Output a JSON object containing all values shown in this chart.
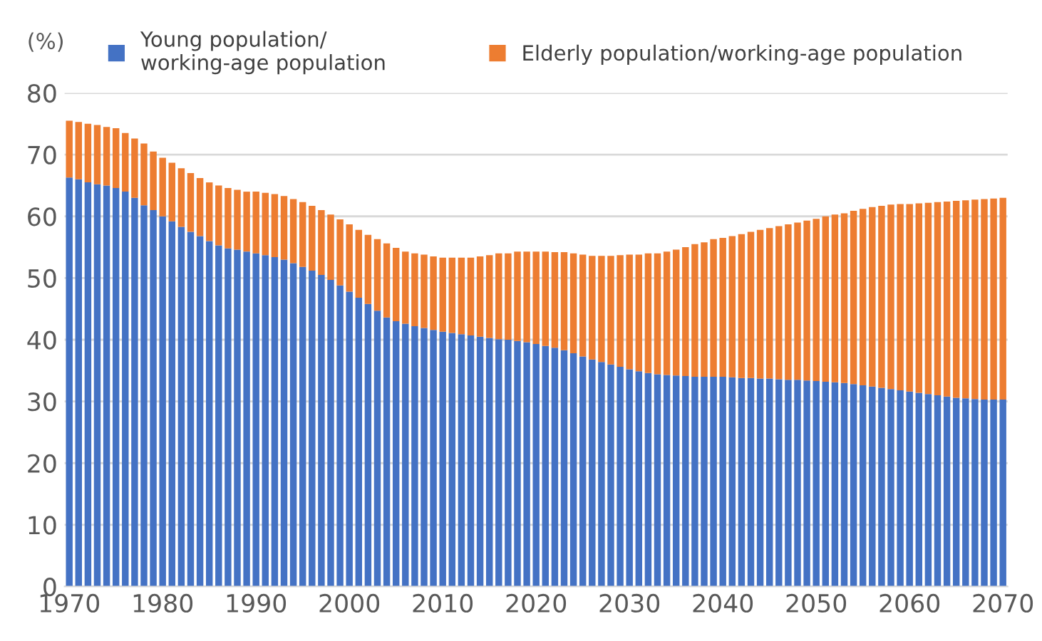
{
  "chart_data": {
    "type": "bar",
    "stacked": true,
    "ylabel": "(%)",
    "x": [
      1970,
      1971,
      1972,
      1973,
      1974,
      1975,
      1976,
      1977,
      1978,
      1979,
      1980,
      1981,
      1982,
      1983,
      1984,
      1985,
      1986,
      1987,
      1988,
      1989,
      1990,
      1991,
      1992,
      1993,
      1994,
      1995,
      1996,
      1997,
      1998,
      1999,
      2000,
      2001,
      2002,
      2003,
      2004,
      2005,
      2006,
      2007,
      2008,
      2009,
      2010,
      2011,
      2012,
      2013,
      2014,
      2015,
      2016,
      2017,
      2018,
      2019,
      2020,
      2021,
      2022,
      2023,
      2024,
      2025,
      2026,
      2027,
      2028,
      2029,
      2030,
      2031,
      2032,
      2033,
      2034,
      2035,
      2036,
      2037,
      2038,
      2039,
      2040,
      2041,
      2042,
      2043,
      2044,
      2045,
      2046,
      2047,
      2048,
      2049,
      2050,
      2051,
      2052,
      2053,
      2054,
      2055,
      2056,
      2057,
      2058,
      2059,
      2060,
      2061,
      2062,
      2063,
      2064,
      2065,
      2066,
      2067,
      2068,
      2069,
      2070
    ],
    "series": [
      {
        "name": "Young population/\nworking-age population",
        "color": "#4472c4",
        "values": [
          66.3,
          66.0,
          65.5,
          65.2,
          65.0,
          64.6,
          64.0,
          63.0,
          61.8,
          61.0,
          60.0,
          59.2,
          58.3,
          57.5,
          56.8,
          56.0,
          55.3,
          54.8,
          54.6,
          54.3,
          54.0,
          53.7,
          53.4,
          53.0,
          52.4,
          51.8,
          51.2,
          50.5,
          49.7,
          48.8,
          47.8,
          46.8,
          45.8,
          44.7,
          43.6,
          43.0,
          42.6,
          42.2,
          41.9,
          41.6,
          41.3,
          41.1,
          40.9,
          40.7,
          40.5,
          40.3,
          40.1,
          40.0,
          39.8,
          39.6,
          39.3,
          39.0,
          38.7,
          38.3,
          37.8,
          37.3,
          36.8,
          36.4,
          36.0,
          35.6,
          35.2,
          34.9,
          34.6,
          34.4,
          34.3,
          34.2,
          34.1,
          34.0,
          34.0,
          34.0,
          34.0,
          33.9,
          33.8,
          33.8,
          33.7,
          33.7,
          33.6,
          33.5,
          33.5,
          33.4,
          33.3,
          33.2,
          33.1,
          33.0,
          32.8,
          32.6,
          32.4,
          32.2,
          32.0,
          31.8,
          31.6,
          31.4,
          31.2,
          31.0,
          30.8,
          30.6,
          30.5,
          30.4,
          30.3,
          30.3,
          30.3
        ]
      },
      {
        "name": "Elderly population/working-age population",
        "color": "#ed7d31",
        "values": [
          9.2,
          9.3,
          9.5,
          9.6,
          9.5,
          9.7,
          9.5,
          9.6,
          10.0,
          9.5,
          9.5,
          9.5,
          9.5,
          9.5,
          9.4,
          9.5,
          9.7,
          9.8,
          9.7,
          9.7,
          10.0,
          10.1,
          10.2,
          10.3,
          10.4,
          10.5,
          10.5,
          10.5,
          10.6,
          10.7,
          10.9,
          11.0,
          11.2,
          11.6,
          12.0,
          11.9,
          11.7,
          11.8,
          11.9,
          11.9,
          12.0,
          12.2,
          12.4,
          12.6,
          13.0,
          13.4,
          13.9,
          14.0,
          14.5,
          14.7,
          15.0,
          15.3,
          15.5,
          15.9,
          16.2,
          16.5,
          16.8,
          17.2,
          17.6,
          18.1,
          18.6,
          18.9,
          19.4,
          19.6,
          20.0,
          20.4,
          20.9,
          21.5,
          21.8,
          22.3,
          22.5,
          22.9,
          23.3,
          23.7,
          24.1,
          24.4,
          24.8,
          25.2,
          25.5,
          25.9,
          26.3,
          26.8,
          27.2,
          27.5,
          28.1,
          28.6,
          29.1,
          29.5,
          29.9,
          30.2,
          30.4,
          30.7,
          31.0,
          31.3,
          31.6,
          31.9,
          32.1,
          32.3,
          32.5,
          32.6,
          32.7
        ]
      }
    ],
    "xlim": [
      1969.5,
      2070.5
    ],
    "xticks": [
      1970,
      1980,
      1990,
      2000,
      2010,
      2020,
      2030,
      2040,
      2050,
      2060,
      2070
    ],
    "ylim": [
      0,
      80
    ],
    "yticks": [
      0,
      10,
      20,
      30,
      40,
      50,
      60,
      70,
      80
    ],
    "grid": "y",
    "legend": "top"
  }
}
